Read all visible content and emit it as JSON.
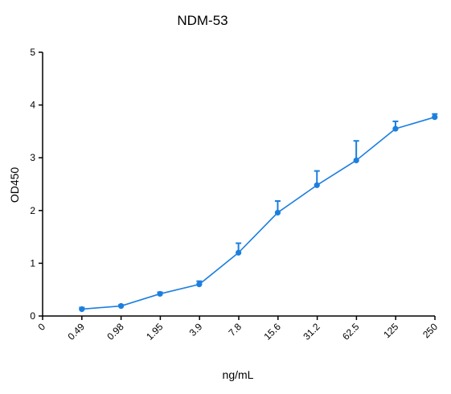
{
  "chart_data": {
    "type": "line",
    "title": "NDM-53",
    "xlabel": "ng/mL",
    "ylabel": "OD450",
    "x_scale": "log2",
    "x_tick_labels": [
      "0",
      "0.49",
      "0.98",
      "1.95",
      "3.9",
      "7.8",
      "15.6",
      "31.2",
      "62.5",
      "125",
      "250"
    ],
    "y_ticks": [
      "0",
      "1",
      "2",
      "3",
      "4",
      "5"
    ],
    "ylim": [
      0,
      5
    ],
    "grid": false,
    "color": "#1c7fe0",
    "series": [
      {
        "x": [
          0.49,
          0.98,
          1.95,
          3.9,
          7.8,
          15.6,
          31.2,
          62.5,
          125,
          250
        ],
        "y": [
          0.13,
          0.19,
          0.42,
          0.6,
          1.2,
          1.96,
          2.48,
          2.95,
          3.55,
          3.77
        ],
        "error": [
          0.03,
          0.02,
          0.03,
          0.06,
          0.18,
          0.22,
          0.27,
          0.37,
          0.14,
          0.06
        ]
      }
    ]
  }
}
